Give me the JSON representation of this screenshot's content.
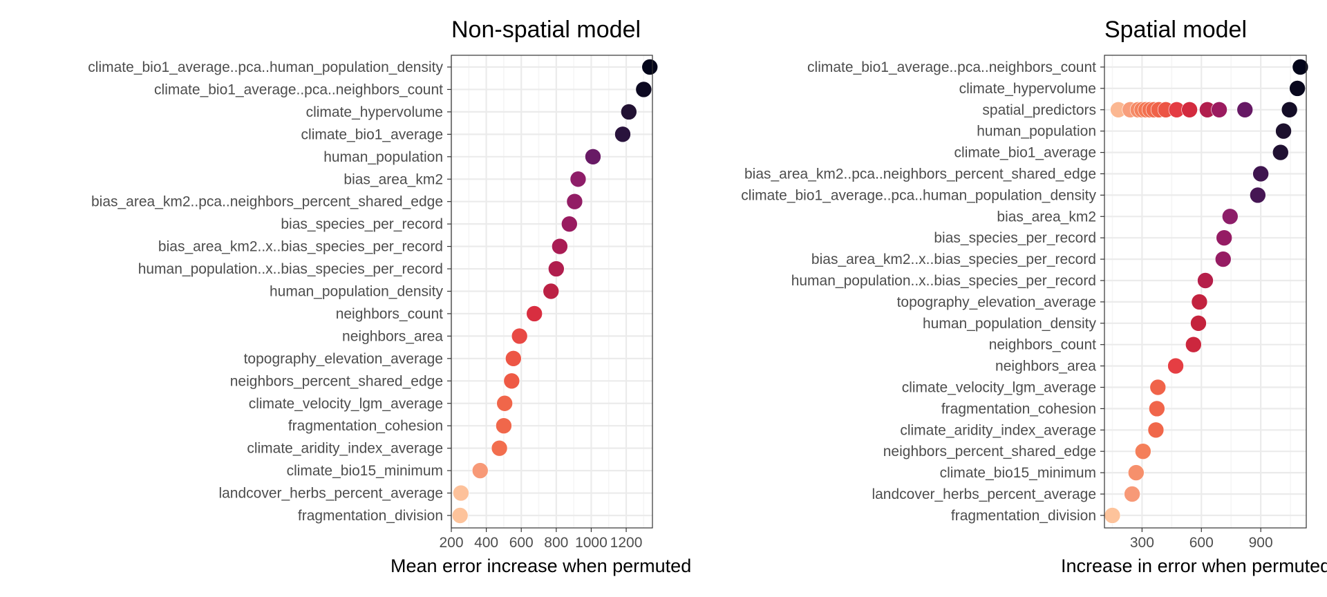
{
  "chart_data": [
    {
      "type": "scatter",
      "title": "Non-spatial model",
      "xlabel": "Mean error increase when permuted",
      "ylabel": "",
      "xlim": [
        200,
        1350
      ],
      "xticks": [
        200,
        400,
        600,
        800,
        1000,
        1200
      ],
      "grid": true,
      "categories": [
        "climate_bio1_average..pca..human_population_density",
        "climate_bio1_average..pca..neighbors_count",
        "climate_hypervolume",
        "climate_bio1_average",
        "human_population",
        "bias_area_km2",
        "bias_area_km2..pca..neighbors_percent_shared_edge",
        "bias_species_per_record",
        "bias_area_km2..x..bias_species_per_record",
        "human_population..x..bias_species_per_record",
        "human_population_density",
        "neighbors_count",
        "neighbors_area",
        "topography_elevation_average",
        "neighbors_percent_shared_edge",
        "climate_velocity_lgm_average",
        "fragmentation_cohesion",
        "climate_aridity_index_average",
        "climate_bio15_minimum",
        "landcover_herbs_percent_average",
        "fragmentation_division"
      ],
      "points": [
        {
          "category": "climate_bio1_average..pca..human_population_density",
          "value": 1335
        },
        {
          "category": "climate_bio1_average..pca..neighbors_count",
          "value": 1300
        },
        {
          "category": "climate_hypervolume",
          "value": 1215
        },
        {
          "category": "climate_bio1_average",
          "value": 1180
        },
        {
          "category": "human_population",
          "value": 1010
        },
        {
          "category": "bias_area_km2",
          "value": 925
        },
        {
          "category": "bias_area_km2..pca..neighbors_percent_shared_edge",
          "value": 905
        },
        {
          "category": "bias_species_per_record",
          "value": 875
        },
        {
          "category": "bias_area_km2..x..bias_species_per_record",
          "value": 820
        },
        {
          "category": "human_population..x..bias_species_per_record",
          "value": 800
        },
        {
          "category": "human_population_density",
          "value": 770
        },
        {
          "category": "neighbors_count",
          "value": 675
        },
        {
          "category": "neighbors_area",
          "value": 590
        },
        {
          "category": "topography_elevation_average",
          "value": 555
        },
        {
          "category": "neighbors_percent_shared_edge",
          "value": 545
        },
        {
          "category": "climate_velocity_lgm_average",
          "value": 505
        },
        {
          "category": "fragmentation_cohesion",
          "value": 500
        },
        {
          "category": "climate_aridity_index_average",
          "value": 475
        },
        {
          "category": "climate_bio15_minimum",
          "value": 365
        },
        {
          "category": "landcover_herbs_percent_average",
          "value": 255
        },
        {
          "category": "fragmentation_division",
          "value": 250
        }
      ]
    },
    {
      "type": "scatter",
      "title": "Spatial model",
      "xlabel": "Increase in error when permuted",
      "ylabel": "",
      "xlim": [
        110,
        1130
      ],
      "xticks": [
        300,
        600,
        900
      ],
      "grid": true,
      "categories": [
        "climate_bio1_average..pca..neighbors_count",
        "climate_hypervolume",
        "spatial_predictors",
        "human_population",
        "climate_bio1_average",
        "bias_area_km2..pca..neighbors_percent_shared_edge",
        "climate_bio1_average..pca..human_population_density",
        "bias_area_km2",
        "bias_species_per_record",
        "bias_area_km2..x..bias_species_per_record",
        "human_population..x..bias_species_per_record",
        "topography_elevation_average",
        "human_population_density",
        "neighbors_count",
        "neighbors_area",
        "climate_velocity_lgm_average",
        "fragmentation_cohesion",
        "climate_aridity_index_average",
        "neighbors_percent_shared_edge",
        "climate_bio15_minimum",
        "landcover_herbs_percent_average",
        "fragmentation_division"
      ],
      "points": [
        {
          "category": "climate_bio1_average..pca..neighbors_count",
          "value": 1100
        },
        {
          "category": "climate_hypervolume",
          "value": 1085
        },
        {
          "category": "spatial_predictors",
          "value": 1045
        },
        {
          "category": "spatial_predictors",
          "value": 820
        },
        {
          "category": "spatial_predictors",
          "value": 690
        },
        {
          "category": "spatial_predictors",
          "value": 630
        },
        {
          "category": "spatial_predictors",
          "value": 540
        },
        {
          "category": "spatial_predictors",
          "value": 475
        },
        {
          "category": "spatial_predictors",
          "value": 420
        },
        {
          "category": "spatial_predictors",
          "value": 385
        },
        {
          "category": "spatial_predictors",
          "value": 360
        },
        {
          "category": "spatial_predictors",
          "value": 340
        },
        {
          "category": "spatial_predictors",
          "value": 320
        },
        {
          "category": "spatial_predictors",
          "value": 300
        },
        {
          "category": "spatial_predictors",
          "value": 280
        },
        {
          "category": "spatial_predictors",
          "value": 240
        },
        {
          "category": "spatial_predictors",
          "value": 180
        },
        {
          "category": "human_population",
          "value": 1015
        },
        {
          "category": "climate_bio1_average",
          "value": 1000
        },
        {
          "category": "bias_area_km2..pca..neighbors_percent_shared_edge",
          "value": 900
        },
        {
          "category": "climate_bio1_average..pca..human_population_density",
          "value": 885
        },
        {
          "category": "bias_area_km2",
          "value": 745
        },
        {
          "category": "bias_species_per_record",
          "value": 715
        },
        {
          "category": "bias_area_km2..x..bias_species_per_record",
          "value": 710
        },
        {
          "category": "human_population..x..bias_species_per_record",
          "value": 620
        },
        {
          "category": "topography_elevation_average",
          "value": 590
        },
        {
          "category": "human_population_density",
          "value": 585
        },
        {
          "category": "neighbors_count",
          "value": 560
        },
        {
          "category": "neighbors_area",
          "value": 470
        },
        {
          "category": "climate_velocity_lgm_average",
          "value": 380
        },
        {
          "category": "fragmentation_cohesion",
          "value": 375
        },
        {
          "category": "climate_aridity_index_average",
          "value": 370
        },
        {
          "category": "neighbors_percent_shared_edge",
          "value": 305
        },
        {
          "category": "climate_bio15_minimum",
          "value": 270
        },
        {
          "category": "landcover_herbs_percent_average",
          "value": 250
        },
        {
          "category": "fragmentation_division",
          "value": 150
        }
      ]
    }
  ],
  "colors": {
    "palette": [
      "#fdc39b",
      "#f8a07e",
      "#f37651",
      "#ee5a45",
      "#e13342",
      "#c5233c",
      "#a11a5b",
      "#8a1e6b",
      "#5a1862",
      "#321446",
      "#1d112e",
      "#03051a"
    ],
    "grid_major": "#ebebeb",
    "grid_minor": "#f5f5f5",
    "panel_border": "#333333",
    "tick_text": "#4d4d4d"
  }
}
